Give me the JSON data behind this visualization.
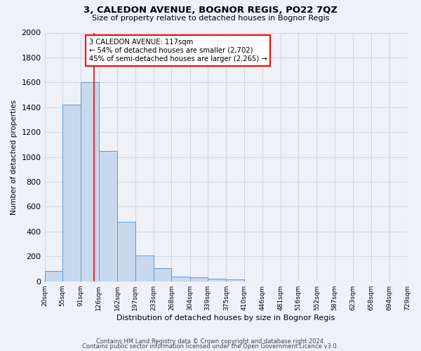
{
  "title1": "3, CALEDON AVENUE, BOGNOR REGIS, PO22 7QZ",
  "title2": "Size of property relative to detached houses in Bognor Regis",
  "xlabel": "Distribution of detached houses by size in Bognor Regis",
  "ylabel": "Number of detached properties",
  "bin_labels": [
    "20sqm",
    "55sqm",
    "91sqm",
    "126sqm",
    "162sqm",
    "197sqm",
    "233sqm",
    "268sqm",
    "304sqm",
    "339sqm",
    "375sqm",
    "410sqm",
    "446sqm",
    "481sqm",
    "516sqm",
    "552sqm",
    "587sqm",
    "623sqm",
    "658sqm",
    "694sqm",
    "729sqm"
  ],
  "bin_edges": [
    20,
    55,
    91,
    126,
    162,
    197,
    233,
    268,
    304,
    339,
    375,
    410,
    446,
    481,
    516,
    552,
    587,
    623,
    658,
    694,
    729
  ],
  "bar_heights": [
    85,
    1420,
    1600,
    1050,
    480,
    205,
    105,
    40,
    30,
    20,
    15,
    0,
    0,
    0,
    0,
    0,
    0,
    0,
    0,
    0
  ],
  "bar_color": "#c8d9ed",
  "bar_edge_color": "#5b9bd5",
  "grid_color": "#d0d8e8",
  "background_color": "#eef2f8",
  "red_line_x": 117,
  "annotation_text": "3 CALEDON AVENUE: 117sqm\n← 54% of detached houses are smaller (2,702)\n45% of semi-detached houses are larger (2,265) →",
  "annotation_box_color": "white",
  "annotation_box_edge": "red",
  "ylim": [
    0,
    2000
  ],
  "yticks": [
    0,
    200,
    400,
    600,
    800,
    1000,
    1200,
    1400,
    1600,
    1800,
    2000
  ],
  "footer1": "Contains HM Land Registry data © Crown copyright and database right 2024.",
  "footer2": "Contains public sector information licensed under the Open Government Licence v3.0."
}
